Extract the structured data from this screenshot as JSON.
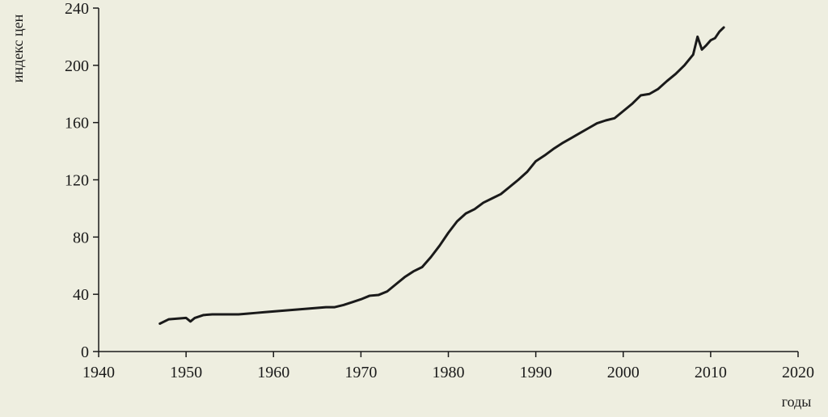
{
  "chart_data": {
    "type": "line",
    "xlabel": "годы",
    "ylabel": "индекс цен",
    "xlim": [
      1940,
      2020
    ],
    "ylim": [
      0,
      240
    ],
    "x_ticks": [
      1940,
      1950,
      1960,
      1970,
      1980,
      1990,
      2000,
      2010,
      2020
    ],
    "y_ticks": [
      0,
      40,
      80,
      120,
      160,
      200,
      240
    ],
    "grid": false,
    "legend": "none",
    "colors": {
      "line": "#1a1a1a",
      "axis": "#1a1a1a",
      "background": "#eeeee0"
    },
    "series": [
      {
        "x": [
          1947,
          1948,
          1949,
          1950,
          1950.5,
          1951,
          1952,
          1953,
          1954,
          1955,
          1956,
          1957,
          1958,
          1959,
          1960,
          1961,
          1962,
          1963,
          1964,
          1965,
          1966,
          1967,
          1968,
          1969,
          1970,
          1971,
          1972,
          1973,
          1974,
          1975,
          1976,
          1977,
          1978,
          1979,
          1980,
          1981,
          1982,
          1983,
          1984,
          1985,
          1986,
          1987,
          1988,
          1989,
          1990,
          1991,
          1992,
          1993,
          1994,
          1995,
          1996,
          1997,
          1998,
          1999,
          2000,
          2001,
          2002,
          2003,
          2004,
          2005,
          2006,
          2007,
          2008,
          2008.5,
          2009,
          2009.5,
          2010,
          2010.5,
          2011,
          2011.5
        ],
        "y": [
          19.5,
          22.5,
          23,
          23.5,
          21,
          23.5,
          25.5,
          26,
          26,
          26,
          26,
          26.5,
          27,
          27.5,
          28,
          28.5,
          29,
          29.5,
          30,
          30.5,
          31,
          31,
          32.5,
          34.5,
          36.5,
          39,
          39.5,
          42,
          47,
          52,
          56,
          59,
          66,
          74,
          83,
          91,
          96.5,
          99.5,
          104,
          107,
          110,
          115,
          120,
          125.5,
          133,
          137,
          141.5,
          145.5,
          149,
          152.5,
          156,
          159.5,
          161.5,
          163,
          168,
          173,
          179,
          180,
          183.5,
          189,
          194,
          200,
          207.5,
          220,
          211,
          214,
          217.5,
          219,
          223.5,
          226.5
        ]
      }
    ]
  }
}
